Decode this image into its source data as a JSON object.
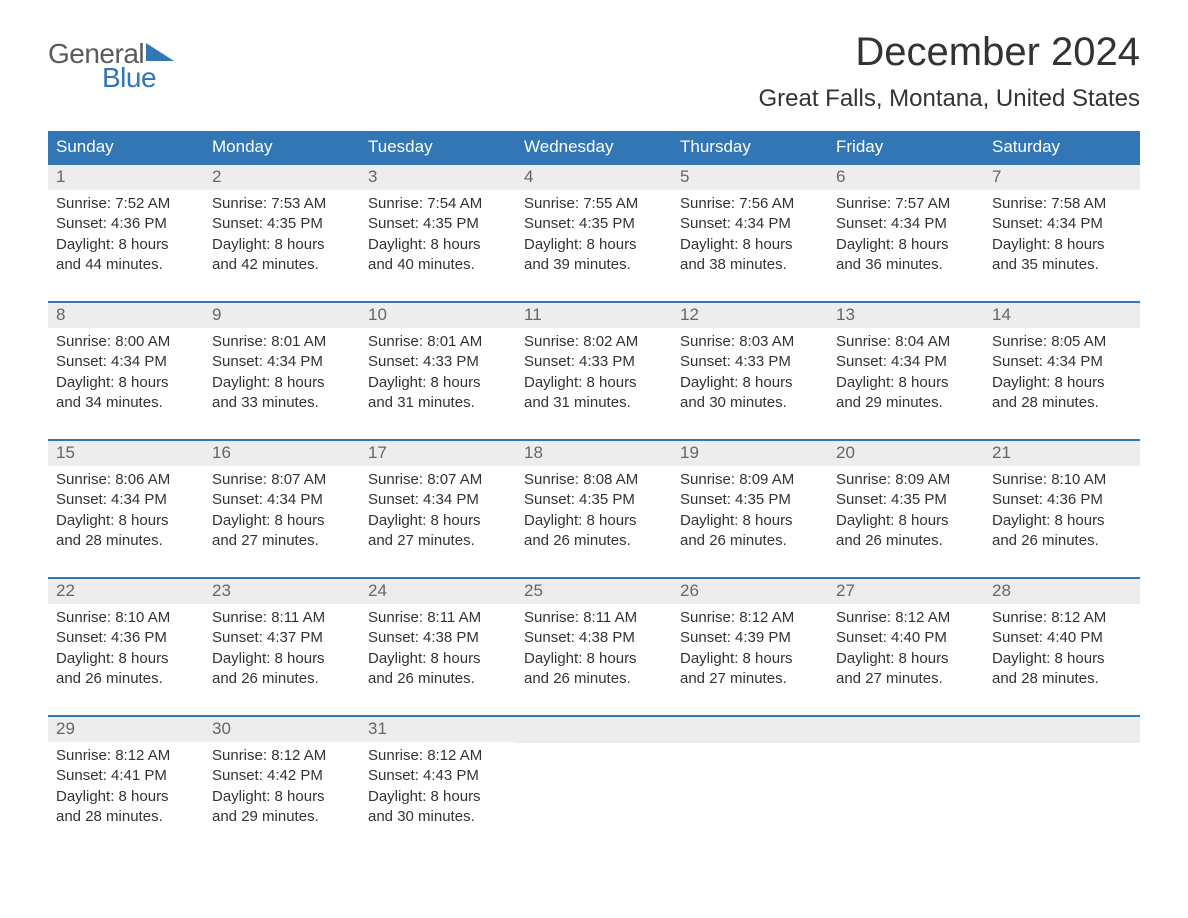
{
  "logo": {
    "text1": "General",
    "text2": "Blue"
  },
  "title": "December 2024",
  "location": "Great Falls, Montana, United States",
  "colors": {
    "header_bg": "#3276b5",
    "header_text": "#ffffff",
    "daynum_bg": "#ededed",
    "daynum_text": "#666666",
    "body_text": "#333333",
    "logo_general": "#5a5a5a",
    "logo_blue": "#3276b5",
    "page_bg": "#ffffff"
  },
  "fonts": {
    "title_size": 40,
    "location_size": 24,
    "dayheader_size": 17,
    "daynum_size": 17,
    "content_size": 15,
    "logo_size": 28
  },
  "dayHeaders": [
    "Sunday",
    "Monday",
    "Tuesday",
    "Wednesday",
    "Thursday",
    "Friday",
    "Saturday"
  ],
  "weeks": [
    [
      {
        "num": "1",
        "lines": "Sunrise: 7:52 AM\nSunset: 4:36 PM\nDaylight: 8 hours\nand 44 minutes."
      },
      {
        "num": "2",
        "lines": "Sunrise: 7:53 AM\nSunset: 4:35 PM\nDaylight: 8 hours\nand 42 minutes."
      },
      {
        "num": "3",
        "lines": "Sunrise: 7:54 AM\nSunset: 4:35 PM\nDaylight: 8 hours\nand 40 minutes."
      },
      {
        "num": "4",
        "lines": "Sunrise: 7:55 AM\nSunset: 4:35 PM\nDaylight: 8 hours\nand 39 minutes."
      },
      {
        "num": "5",
        "lines": "Sunrise: 7:56 AM\nSunset: 4:34 PM\nDaylight: 8 hours\nand 38 minutes."
      },
      {
        "num": "6",
        "lines": "Sunrise: 7:57 AM\nSunset: 4:34 PM\nDaylight: 8 hours\nand 36 minutes."
      },
      {
        "num": "7",
        "lines": "Sunrise: 7:58 AM\nSunset: 4:34 PM\nDaylight: 8 hours\nand 35 minutes."
      }
    ],
    [
      {
        "num": "8",
        "lines": "Sunrise: 8:00 AM\nSunset: 4:34 PM\nDaylight: 8 hours\nand 34 minutes."
      },
      {
        "num": "9",
        "lines": "Sunrise: 8:01 AM\nSunset: 4:34 PM\nDaylight: 8 hours\nand 33 minutes."
      },
      {
        "num": "10",
        "lines": "Sunrise: 8:01 AM\nSunset: 4:33 PM\nDaylight: 8 hours\nand 31 minutes."
      },
      {
        "num": "11",
        "lines": "Sunrise: 8:02 AM\nSunset: 4:33 PM\nDaylight: 8 hours\nand 31 minutes."
      },
      {
        "num": "12",
        "lines": "Sunrise: 8:03 AM\nSunset: 4:33 PM\nDaylight: 8 hours\nand 30 minutes."
      },
      {
        "num": "13",
        "lines": "Sunrise: 8:04 AM\nSunset: 4:34 PM\nDaylight: 8 hours\nand 29 minutes."
      },
      {
        "num": "14",
        "lines": "Sunrise: 8:05 AM\nSunset: 4:34 PM\nDaylight: 8 hours\nand 28 minutes."
      }
    ],
    [
      {
        "num": "15",
        "lines": "Sunrise: 8:06 AM\nSunset: 4:34 PM\nDaylight: 8 hours\nand 28 minutes."
      },
      {
        "num": "16",
        "lines": "Sunrise: 8:07 AM\nSunset: 4:34 PM\nDaylight: 8 hours\nand 27 minutes."
      },
      {
        "num": "17",
        "lines": "Sunrise: 8:07 AM\nSunset: 4:34 PM\nDaylight: 8 hours\nand 27 minutes."
      },
      {
        "num": "18",
        "lines": "Sunrise: 8:08 AM\nSunset: 4:35 PM\nDaylight: 8 hours\nand 26 minutes."
      },
      {
        "num": "19",
        "lines": "Sunrise: 8:09 AM\nSunset: 4:35 PM\nDaylight: 8 hours\nand 26 minutes."
      },
      {
        "num": "20",
        "lines": "Sunrise: 8:09 AM\nSunset: 4:35 PM\nDaylight: 8 hours\nand 26 minutes."
      },
      {
        "num": "21",
        "lines": "Sunrise: 8:10 AM\nSunset: 4:36 PM\nDaylight: 8 hours\nand 26 minutes."
      }
    ],
    [
      {
        "num": "22",
        "lines": "Sunrise: 8:10 AM\nSunset: 4:36 PM\nDaylight: 8 hours\nand 26 minutes."
      },
      {
        "num": "23",
        "lines": "Sunrise: 8:11 AM\nSunset: 4:37 PM\nDaylight: 8 hours\nand 26 minutes."
      },
      {
        "num": "24",
        "lines": "Sunrise: 8:11 AM\nSunset: 4:38 PM\nDaylight: 8 hours\nand 26 minutes."
      },
      {
        "num": "25",
        "lines": "Sunrise: 8:11 AM\nSunset: 4:38 PM\nDaylight: 8 hours\nand 26 minutes."
      },
      {
        "num": "26",
        "lines": "Sunrise: 8:12 AM\nSunset: 4:39 PM\nDaylight: 8 hours\nand 27 minutes."
      },
      {
        "num": "27",
        "lines": "Sunrise: 8:12 AM\nSunset: 4:40 PM\nDaylight: 8 hours\nand 27 minutes."
      },
      {
        "num": "28",
        "lines": "Sunrise: 8:12 AM\nSunset: 4:40 PM\nDaylight: 8 hours\nand 28 minutes."
      }
    ],
    [
      {
        "num": "29",
        "lines": "Sunrise: 8:12 AM\nSunset: 4:41 PM\nDaylight: 8 hours\nand 28 minutes."
      },
      {
        "num": "30",
        "lines": "Sunrise: 8:12 AM\nSunset: 4:42 PM\nDaylight: 8 hours\nand 29 minutes."
      },
      {
        "num": "31",
        "lines": "Sunrise: 8:12 AM\nSunset: 4:43 PM\nDaylight: 8 hours\nand 30 minutes."
      },
      {
        "num": "",
        "lines": ""
      },
      {
        "num": "",
        "lines": ""
      },
      {
        "num": "",
        "lines": ""
      },
      {
        "num": "",
        "lines": ""
      }
    ]
  ]
}
